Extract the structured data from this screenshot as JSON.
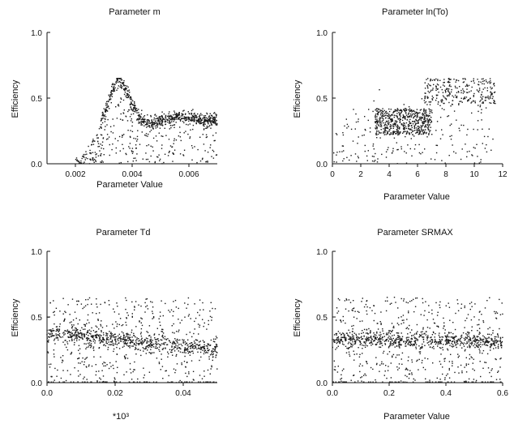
{
  "colors": {
    "points": "#1a1a1a",
    "axes": "#111111",
    "background": "#ffffff"
  },
  "chart_data": [
    {
      "type": "scatter",
      "title": "Parameter m",
      "xlabel": "Parameter Value",
      "ylabel": "Efficiency",
      "xlim": [
        0.001,
        0.007
      ],
      "ylim": [
        0.0,
        1.0
      ],
      "xticks": [
        0.002,
        0.004,
        0.006
      ],
      "xtick_labels": [
        "0.002",
        "0.004",
        "0.006"
      ],
      "yticks": [
        0.0,
        0.5,
        1.0
      ],
      "ytick_labels": [
        "0.0",
        "0.5",
        "1.0"
      ],
      "grid": false,
      "series": [
        {
          "description_points": "dense sample cloud",
          "ridge": [
            [
              0.0022,
              0.05
            ],
            [
              0.0028,
              0.25
            ],
            [
              0.0032,
              0.5
            ],
            [
              0.0035,
              0.65
            ],
            [
              0.0038,
              0.55
            ],
            [
              0.0042,
              0.36
            ],
            [
              0.0046,
              0.3
            ],
            [
              0.005,
              0.33
            ],
            [
              0.0055,
              0.35
            ],
            [
              0.006,
              0.36
            ],
            [
              0.0065,
              0.34
            ],
            [
              0.007,
              0.33
            ]
          ],
          "xrange": [
            0.002,
            0.007
          ],
          "yrange": [
            0.0,
            0.65
          ]
        }
      ]
    },
    {
      "type": "scatter",
      "title": "Parameter ln(To)",
      "xlabel": "Parameter Value",
      "ylabel": "Efficiency",
      "xlim": [
        0,
        12
      ],
      "ylim": [
        0.0,
        1.0
      ],
      "xticks": [
        0,
        2,
        4,
        6,
        8,
        10,
        12
      ],
      "xtick_labels": [
        "0",
        "2",
        "4",
        "6",
        "8",
        "10",
        "12"
      ],
      "yticks": [
        0.0,
        0.5,
        1.0
      ],
      "ytick_labels": [
        "0.0",
        "0.5",
        "1.0"
      ],
      "grid": false,
      "series": [
        {
          "dense_cluster": {
            "x": [
              3.0,
              7.0
            ],
            "y": [
              0.22,
              0.42
            ]
          },
          "upper_band": {
            "x": [
              6.5,
              11.5
            ],
            "y": [
              0.45,
              0.65
            ]
          },
          "xrange": [
            0.0,
            11.5
          ],
          "yrange": [
            0.0,
            0.65
          ]
        }
      ]
    },
    {
      "type": "scatter",
      "title": "Parameter Td",
      "xlabel": "*10³",
      "ylabel": "Efficiency",
      "xlim": [
        0.0,
        0.05
      ],
      "ylim": [
        0.0,
        1.0
      ],
      "xticks": [
        0.0,
        0.02,
        0.04
      ],
      "xtick_labels": [
        "0.0",
        "0.02",
        "0.04"
      ],
      "yticks": [
        0.0,
        0.5,
        1.0
      ],
      "ytick_labels": [
        "0.0",
        "0.5",
        "1.0"
      ],
      "grid": false,
      "series": [
        {
          "trend": [
            [
              0.0,
              0.37
            ],
            [
              0.01,
              0.36
            ],
            [
              0.02,
              0.33
            ],
            [
              0.03,
              0.3
            ],
            [
              0.04,
              0.28
            ],
            [
              0.05,
              0.26
            ]
          ],
          "xrange": [
            0.0,
            0.05
          ],
          "yrange": [
            0.0,
            0.65
          ]
        }
      ]
    },
    {
      "type": "scatter",
      "title": "Parameter SRMAX",
      "xlabel": "Parameter Value",
      "ylabel": "Efficiency",
      "xlim": [
        0.0,
        0.6
      ],
      "ylim": [
        0.0,
        1.0
      ],
      "xticks": [
        0.0,
        0.2,
        0.4,
        0.6
      ],
      "xtick_labels": [
        "0.0",
        "0.2",
        "0.4",
        "0.6"
      ],
      "yticks": [
        0.0,
        0.5,
        1.0
      ],
      "ytick_labels": [
        "0.0",
        "0.5",
        "1.0"
      ],
      "grid": false,
      "series": [
        {
          "trend": [
            [
              0.0,
              0.33
            ],
            [
              0.2,
              0.33
            ],
            [
              0.4,
              0.32
            ],
            [
              0.6,
              0.31
            ]
          ],
          "xrange": [
            0.0,
            0.6
          ],
          "yrange": [
            0.0,
            0.65
          ]
        }
      ]
    }
  ]
}
